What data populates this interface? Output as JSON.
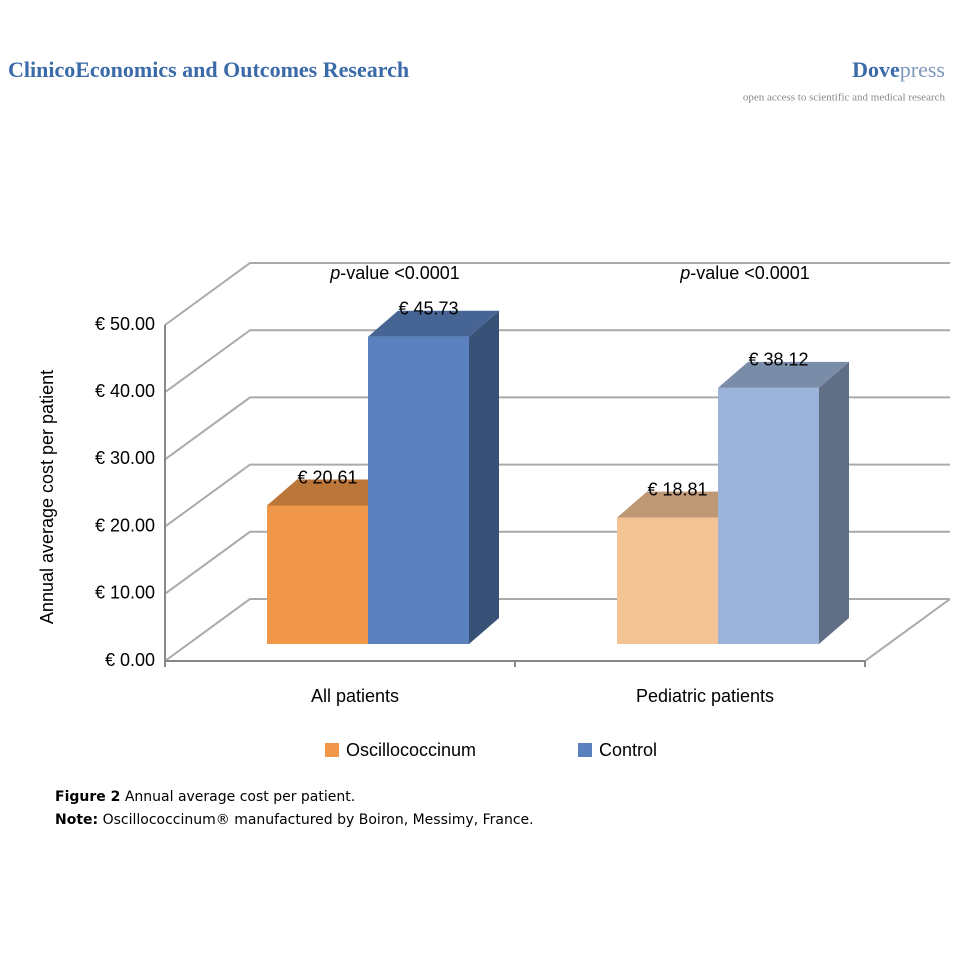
{
  "header": {
    "journal": "ClinicoEconomics and Outcomes Research",
    "brand_bold": "Dove",
    "brand_rest": "press",
    "tagline": "open access to scientific and medical research"
  },
  "chart_data": {
    "type": "bar3d",
    "ylabel": "Annual average cost per patient",
    "categories": [
      "All patients",
      "Pediatric patients"
    ],
    "annotations": [
      {
        "italic": "p",
        "text": "-value <0.0001"
      },
      {
        "italic": "p",
        "text": "-value <0.0001"
      }
    ],
    "series": [
      {
        "name": "Oscillococcinum",
        "color": "#f0974a",
        "colors": [
          "#f0974a",
          "#f3c396"
        ],
        "values": [
          20.61,
          18.81
        ],
        "value_labels": [
          "€ 20.61",
          "€ 18.81"
        ]
      },
      {
        "name": "Control",
        "color": "#5b82be",
        "colors": [
          "#5b82be",
          "#9bb3d8"
        ],
        "values": [
          45.73,
          38.12
        ],
        "value_labels": [
          "€ 45.73",
          "€ 38.12"
        ]
      }
    ],
    "ylim": [
      0,
      50
    ],
    "yticks": [
      {
        "value": 0,
        "label": "€ 0.00"
      },
      {
        "value": 10,
        "label": "€ 10.00"
      },
      {
        "value": 20,
        "label": "€ 20.00"
      },
      {
        "value": 30,
        "label": "€ 30.00"
      },
      {
        "value": 40,
        "label": "€ 40.00"
      },
      {
        "value": 50,
        "label": "€ 50.00"
      }
    ],
    "grid": true,
    "legend": "bottom"
  },
  "caption": {
    "label": "Figure 2",
    "text": "Annual average cost per patient.",
    "note_label": "Note:",
    "note": "Oscillococcinum® manufactured by Boiron, Messimy, France."
  }
}
